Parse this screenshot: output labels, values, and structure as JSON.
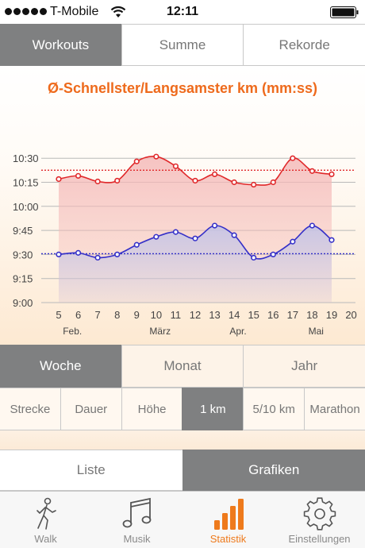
{
  "status_bar": {
    "carrier": "T-Mobile",
    "time": "12:11"
  },
  "top_tabs": [
    "Workouts",
    "Summe",
    "Rekorde"
  ],
  "chart_data": {
    "type": "line",
    "title": "Ø-Schnellster/Langsamster km  (mm:ss)",
    "x": [
      5,
      6,
      7,
      8,
      9,
      10,
      11,
      12,
      13,
      14,
      15,
      16,
      17,
      18,
      19
    ],
    "x_ticks": [
      "5",
      "6",
      "7",
      "8",
      "9",
      "10",
      "11",
      "12",
      "13",
      "14",
      "15",
      "16",
      "17",
      "18",
      "19",
      "20"
    ],
    "month_labels": [
      {
        "label": "Feb.",
        "at": 5.7
      },
      {
        "label": "März",
        "at": 10.2
      },
      {
        "label": "Apr.",
        "at": 14.2
      },
      {
        "label": "Mai",
        "at": 18.2
      }
    ],
    "y_ticks": [
      "9:00",
      "9:15",
      "9:30",
      "9:45",
      "10:00",
      "10:15",
      "10:30"
    ],
    "ylim_seconds": [
      540,
      640
    ],
    "series": [
      {
        "color": "#e0282a",
        "fill": "#f4b9b8",
        "avg_seconds": 622.5,
        "values_seconds": [
          617,
          619,
          615.5,
          616,
          628,
          631,
          625,
          616,
          620,
          615,
          613.5,
          615,
          630,
          622,
          620
        ]
      },
      {
        "color": "#3530c8",
        "fill": "#c2c4e8",
        "avg_seconds": 570.5,
        "values_seconds": [
          570,
          571,
          568,
          570,
          576,
          581,
          584,
          580,
          588,
          582,
          568,
          570,
          578,
          588,
          579
        ]
      }
    ]
  },
  "period_tabs": [
    "Woche",
    "Monat",
    "Jahr"
  ],
  "distance_tabs": [
    "Strecke",
    "Dauer",
    "Höhe",
    "1 km",
    "5/10 km",
    "Marathon"
  ],
  "view_tabs": [
    "Liste",
    "Grafiken"
  ],
  "tab_bar": [
    {
      "label": "Walk",
      "icon": "walk-icon"
    },
    {
      "label": "Musik",
      "icon": "music-icon"
    },
    {
      "label": "Statistik",
      "icon": "statistics-icon"
    },
    {
      "label": "Einstellungen",
      "icon": "settings-gear-icon"
    }
  ],
  "colors": {
    "accent": "#ee7a1c",
    "active_segment": "#7f8081"
  }
}
